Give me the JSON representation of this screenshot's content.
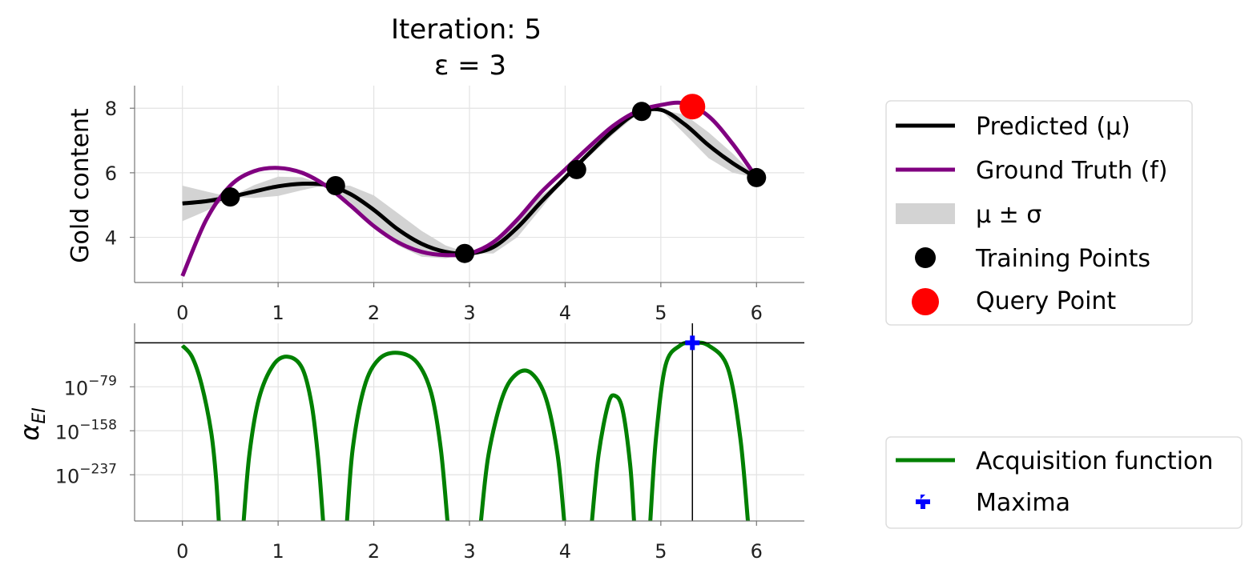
{
  "figure": {
    "title": "Iteration: 5",
    "subtitle": "ε = 3"
  },
  "chart_data": [
    {
      "type": "line",
      "name": "top-panel",
      "ylabel": "Gold content",
      "xlabel": "",
      "xlim": [
        -0.5,
        6.5
      ],
      "ylim": [
        2.6,
        8.7
      ],
      "x_ticks": [
        "0",
        "1",
        "2",
        "3",
        "4",
        "5",
        "6"
      ],
      "y_ticks": [
        "4",
        "6",
        "8"
      ],
      "grid": true,
      "legend_position": "right",
      "ground_truth_x": [
        0.0,
        0.25,
        0.5,
        0.75,
        1.0,
        1.25,
        1.5,
        1.75,
        2.0,
        2.25,
        2.5,
        2.75,
        3.0,
        3.25,
        3.5,
        3.75,
        4.0,
        4.25,
        4.5,
        4.75,
        5.0,
        5.25,
        5.5,
        5.75,
        6.0
      ],
      "ground_truth_y": [
        2.8,
        4.55,
        5.6,
        6.05,
        6.15,
        6.0,
        5.6,
        5.0,
        4.35,
        3.85,
        3.55,
        3.45,
        3.5,
        3.85,
        4.55,
        5.4,
        6.1,
        6.8,
        7.45,
        7.9,
        8.1,
        8.15,
        7.75,
        6.9,
        5.85
      ],
      "predicted_x": [
        0.0,
        0.25,
        0.5,
        0.75,
        1.0,
        1.25,
        1.5,
        1.75,
        2.0,
        2.25,
        2.5,
        2.75,
        3.0,
        3.25,
        3.5,
        3.75,
        4.0,
        4.25,
        4.5,
        4.75,
        5.0,
        5.25,
        5.5,
        5.75,
        6.0
      ],
      "predicted_y": [
        5.05,
        5.12,
        5.25,
        5.42,
        5.58,
        5.66,
        5.62,
        5.35,
        4.85,
        4.25,
        3.8,
        3.55,
        3.5,
        3.7,
        4.3,
        5.1,
        5.85,
        6.6,
        7.3,
        7.85,
        7.95,
        7.5,
        6.85,
        6.3,
        5.85
      ],
      "sigma": [
        0.55,
        0.3,
        0.0,
        0.2,
        0.3,
        0.2,
        0.0,
        0.25,
        0.45,
        0.5,
        0.4,
        0.2,
        0.0,
        0.2,
        0.3,
        0.2,
        0.0,
        0.1,
        0.12,
        0.05,
        0.0,
        0.3,
        0.4,
        0.3,
        0.0
      ],
      "training_x": [
        0.5,
        1.6,
        2.95,
        4.12,
        4.8,
        6.0
      ],
      "training_y": [
        5.25,
        5.6,
        3.5,
        6.1,
        7.9,
        5.85
      ],
      "query_x": [
        5.33
      ],
      "query_y": [
        8.05
      ],
      "colors": {
        "predicted": "#000000",
        "ground_truth": "#800080",
        "band": "#d3d3d3",
        "training": "#000000",
        "query": "#ff0000"
      },
      "legend": {
        "predicted": "Predicted (μ)",
        "ground_truth": "Ground Truth (f)",
        "band": "μ ± σ",
        "training": "Training Points",
        "query": "Query Point"
      }
    },
    {
      "type": "line",
      "name": "bottom-panel",
      "ylabel": "αEI",
      "xlabel": "",
      "xlim": [
        -0.5,
        6.5
      ],
      "ylim": [
        -320,
        35
      ],
      "y_scale": "log",
      "x_ticks": [
        "0",
        "1",
        "2",
        "3",
        "4",
        "5",
        "6"
      ],
      "y_ticks": [
        {
          "base": "10",
          "exp": "−79",
          "value": -79
        },
        {
          "base": "10",
          "exp": "−158",
          "value": -158
        },
        {
          "base": "10",
          "exp": "−237",
          "value": -237
        }
      ],
      "grid": true,
      "legend_position": "right",
      "max_x": 5.33,
      "max_y": 0,
      "colors": {
        "acquisition": "#008000",
        "maxima": "#0000ff",
        "crosshair": "#000000"
      },
      "legend": {
        "acquisition": "Acquisition function",
        "maxima": "Maxima"
      },
      "lobes": [
        {
          "x": [
            0.0,
            0.1,
            0.2,
            0.3,
            0.35,
            0.38
          ],
          "log10": [
            -5,
            -25,
            -75,
            -160,
            -240,
            -320
          ]
        },
        {
          "x": [
            0.64,
            0.7,
            0.8,
            0.95,
            1.1,
            1.25,
            1.35,
            1.42,
            1.47
          ],
          "log10": [
            -320,
            -200,
            -100,
            -40,
            -25,
            -45,
            -110,
            -210,
            -320
          ]
        },
        {
          "x": [
            1.72,
            1.78,
            1.9,
            2.05,
            2.25,
            2.45,
            2.6,
            2.7,
            2.77
          ],
          "log10": [
            -320,
            -190,
            -80,
            -30,
            -18,
            -35,
            -90,
            -190,
            -320
          ]
        },
        {
          "x": [
            3.12,
            3.2,
            3.35,
            3.5,
            3.65,
            3.8,
            3.92,
            3.99
          ],
          "log10": [
            -320,
            -200,
            -95,
            -55,
            -55,
            -100,
            -200,
            -320
          ]
        },
        {
          "x": [
            4.28,
            4.35,
            4.45,
            4.52,
            4.6,
            4.68,
            4.72
          ],
          "log10": [
            -320,
            -200,
            -110,
            -95,
            -120,
            -220,
            -320
          ]
        },
        {
          "x": [
            4.89,
            4.95,
            5.05,
            5.2,
            5.33,
            5.5,
            5.7,
            5.83,
            5.91
          ],
          "log10": [
            -320,
            -170,
            -40,
            -5,
            0,
            -5,
            -45,
            -170,
            -320
          ]
        }
      ]
    }
  ]
}
